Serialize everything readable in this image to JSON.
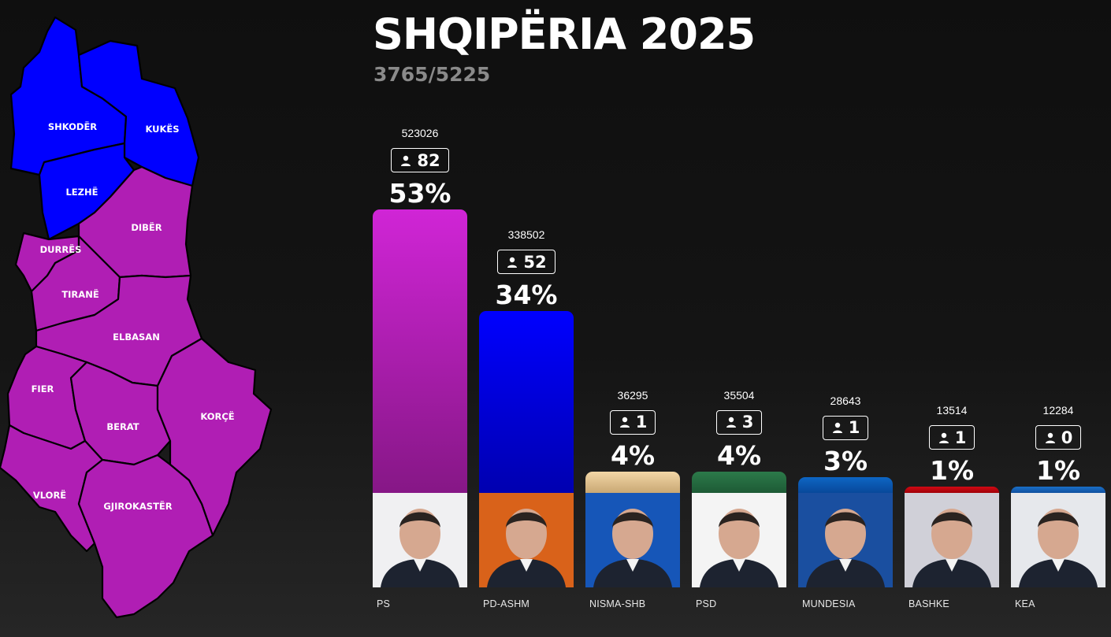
{
  "header": {
    "title": "SHQIPËRIA 2025",
    "subtitle": "3765/5225"
  },
  "map": {
    "regions": [
      {
        "name": "SHKODËR",
        "color": "#0000ff"
      },
      {
        "name": "KUKËS",
        "color": "#0000ff"
      },
      {
        "name": "LEZHË",
        "color": "#0000ff"
      },
      {
        "name": "DIBËR",
        "color": "#b01eb4"
      },
      {
        "name": "DURRËS",
        "color": "#b01eb4"
      },
      {
        "name": "TIRANË",
        "color": "#b01eb4"
      },
      {
        "name": "ELBASAN",
        "color": "#b01eb4"
      },
      {
        "name": "FIER",
        "color": "#b01eb4"
      },
      {
        "name": "BERAT",
        "color": "#b01eb4"
      },
      {
        "name": "KORÇË",
        "color": "#b01eb4"
      },
      {
        "name": "VLORË",
        "color": "#b01eb4"
      },
      {
        "name": "GJIROKASTËR",
        "color": "#b01eb4"
      }
    ]
  },
  "chart_data": {
    "type": "bar",
    "categories": [
      "PS",
      "PD-ASHM",
      "NISMA-SHB",
      "PSD",
      "MUNDESIA",
      "BASHKE",
      "KEA"
    ],
    "votes": [
      523026,
      338502,
      36295,
      35504,
      28643,
      13514,
      12284
    ],
    "seats": [
      82,
      52,
      1,
      3,
      1,
      1,
      0
    ],
    "percent": [
      53,
      34,
      4,
      4,
      3,
      1,
      1
    ],
    "percent_labels": [
      "53%",
      "34%",
      "4%",
      "4%",
      "3%",
      "1%",
      "1%"
    ],
    "colors_top": [
      "#d025d6",
      "#0000ff",
      "#f2d6a6",
      "#2c7a4a",
      "#0d66c4",
      "#d10a14",
      "#1a70c8"
    ],
    "colors_bottom": [
      "#861786",
      "#0000b0",
      "#c9a874",
      "#1d5a35",
      "#08489a",
      "#a00008",
      "#1050a0"
    ],
    "photo_backgrounds": [
      "#f0f0f2",
      "#d9621a",
      "#1656b8",
      "#f4f4f4",
      "#1a4fa0",
      "#d0d0d8",
      "#e6e8ec"
    ]
  }
}
